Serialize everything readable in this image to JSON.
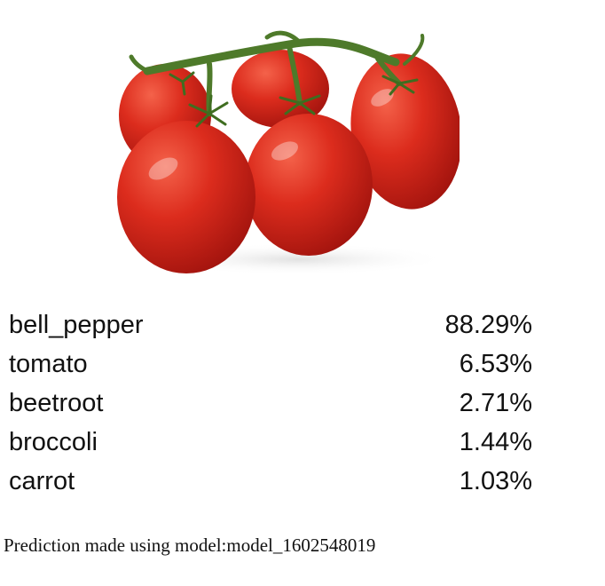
{
  "image": {
    "subject": "tomato-vine-photo"
  },
  "predictions": [
    {
      "label": "bell_pepper",
      "value": "88.29%"
    },
    {
      "label": "tomato",
      "value": "6.53%"
    },
    {
      "label": "beetroot",
      "value": "2.71%"
    },
    {
      "label": "broccoli",
      "value": "1.44%"
    },
    {
      "label": "carrot",
      "value": "1.03%"
    }
  ],
  "footer": {
    "text": "Prediction made using model:model_1602548019"
  },
  "colors": {
    "tomato_red": "#d8281c",
    "tomato_dark": "#a51510",
    "stem_green": "#4e7a2a",
    "text": "#111111"
  }
}
